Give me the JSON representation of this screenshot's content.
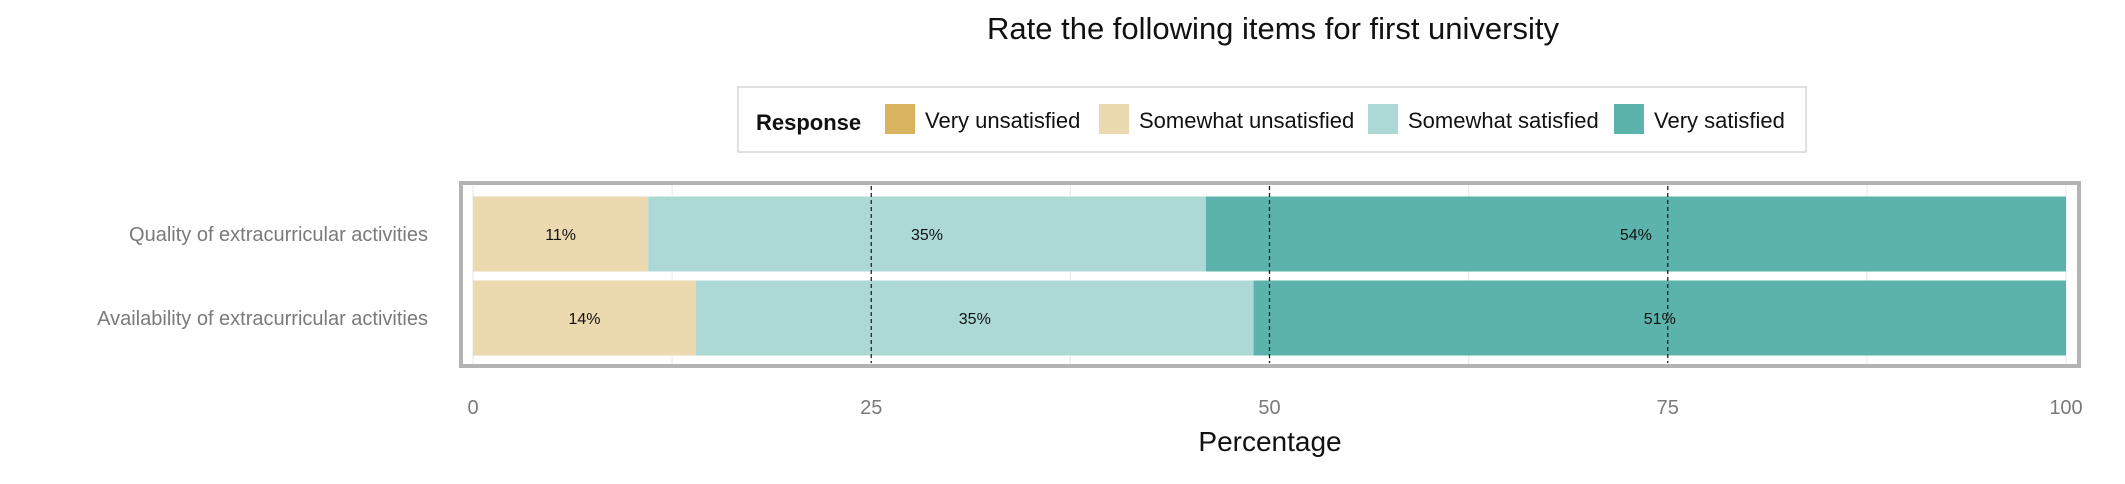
{
  "chart_data": {
    "type": "bar",
    "orientation": "horizontal",
    "stacked": true,
    "title": "Rate the following items for first university",
    "xlabel": "Percentage",
    "ylabel": "",
    "xlim": [
      0,
      100
    ],
    "x_ticks": [
      0,
      25,
      50,
      75,
      100
    ],
    "reference_lines": [
      25,
      50,
      75
    ],
    "grid": true,
    "legend": {
      "title": "Response",
      "placement": "top",
      "entries": [
        "Very unsatisfied",
        "Somewhat unsatisfied",
        "Somewhat satisfied",
        "Very satisfied"
      ]
    },
    "categories": [
      "Quality of extracurricular activities",
      "Availability of extracurricular activities"
    ],
    "series": [
      {
        "name": "Very unsatisfied",
        "color": "#d9b35f",
        "values": [
          0,
          0
        ],
        "labels": [
          "",
          ""
        ]
      },
      {
        "name": "Somewhat unsatisfied",
        "color": "#ebd9b0",
        "values": [
          11,
          14
        ],
        "labels": [
          "11%",
          "14%"
        ]
      },
      {
        "name": "Somewhat satisfied",
        "color": "#acd9d6",
        "values": [
          35,
          35
        ],
        "labels": [
          "35%",
          "35%"
        ]
      },
      {
        "name": "Very satisfied",
        "color": "#5bb3ab",
        "values": [
          54,
          51
        ],
        "labels": [
          "54%",
          "51%"
        ]
      }
    ]
  }
}
